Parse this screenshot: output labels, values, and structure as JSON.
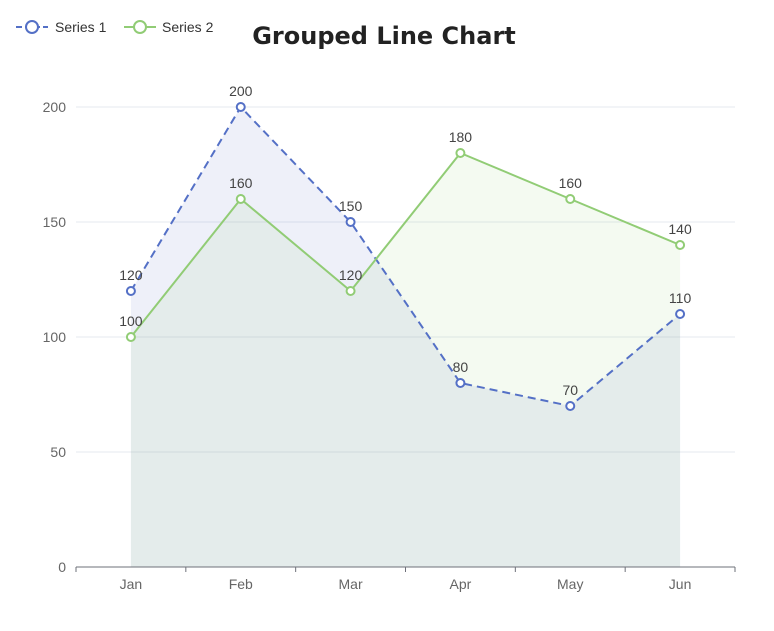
{
  "chart_data": {
    "type": "line",
    "title": "Grouped Line Chart",
    "categories": [
      "Jan",
      "Feb",
      "Mar",
      "Apr",
      "May",
      "Jun"
    ],
    "ylim": [
      0,
      200
    ],
    "yticks": [
      0,
      50,
      100,
      150,
      200
    ],
    "grid": true,
    "legend": "top-left",
    "series": [
      {
        "name": "Series 1",
        "values": [
          120,
          200,
          150,
          80,
          70,
          110
        ],
        "color": "#5470c6",
        "dashed": true,
        "area": true,
        "area_color": "#5470c6"
      },
      {
        "name": "Series 2",
        "values": [
          100,
          160,
          120,
          180,
          160,
          140
        ],
        "color": "#91cc75",
        "dashed": false,
        "area": true,
        "area_color": "#91cc75"
      }
    ]
  }
}
